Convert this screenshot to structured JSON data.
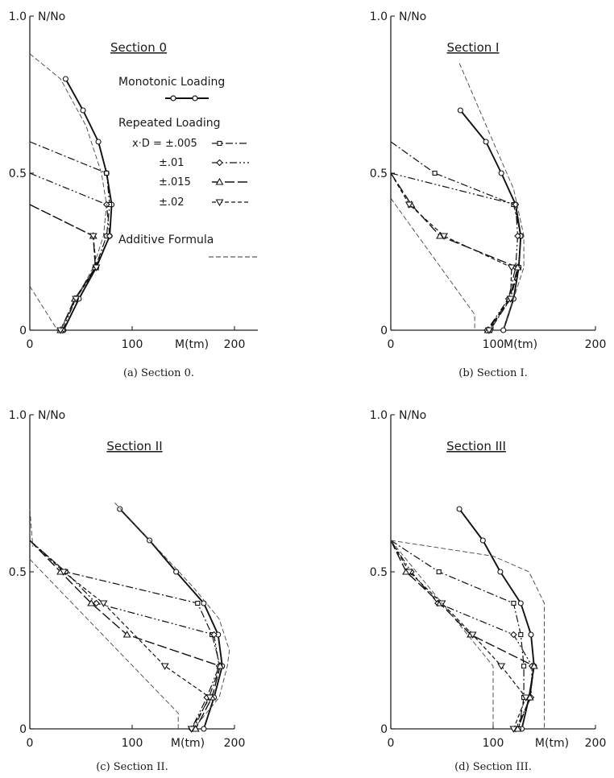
{
  "legend": {
    "monotonic_label": "Monotonic Loading",
    "repeated_label": "Repeated Loading",
    "additive_label": "Additive Formula",
    "entries": [
      "x·D = ±.005",
      "±.01",
      "±.015",
      "±.02"
    ]
  },
  "chart_data": [
    {
      "type": "line",
      "title": "Section 0",
      "caption": "(a)   Section 0.",
      "xlabel": "M(tm)",
      "ylabel": "N/No",
      "xlim": [
        0,
        200
      ],
      "ylim": [
        0,
        1.0
      ],
      "x_ticks": [
        "0",
        "100",
        "200"
      ],
      "y_ticks": [
        "0",
        "0.5",
        "1.0"
      ],
      "series": [
        {
          "name": "Monotonic Loading",
          "style": "mono",
          "points": [
            [
              30,
              0
            ],
            [
              33,
              0
            ],
            [
              48,
              0.1
            ],
            [
              65,
              0.2
            ],
            [
              78,
              0.3
            ],
            [
              80,
              0.4
            ],
            [
              75,
              0.5
            ],
            [
              67,
              0.6
            ],
            [
              52,
              0.7
            ],
            [
              35,
              0.8
            ]
          ]
        },
        {
          "name": "x·D = ±.005",
          "style": "s005",
          "points": [
            [
              0,
              0.6
            ],
            [
              75,
              0.5
            ],
            [
              78,
              0.4
            ],
            [
              75,
              0.3
            ],
            [
              64,
              0.2
            ],
            [
              45,
              0.1
            ],
            [
              30,
              0
            ]
          ]
        },
        {
          "name": "±.01",
          "style": "s01",
          "points": [
            [
              0,
              0.5
            ],
            [
              75,
              0.4
            ],
            [
              78,
              0.3
            ],
            [
              64,
              0.2
            ],
            [
              45,
              0.1
            ],
            [
              32,
              0
            ]
          ]
        },
        {
          "name": "±.015",
          "style": "s015",
          "points": [
            [
              0,
              0.4
            ],
            [
              62,
              0.3
            ],
            [
              64,
              0.2
            ],
            [
              44,
              0.1
            ],
            [
              30,
              0
            ]
          ]
        },
        {
          "name": "±.02",
          "style": "s02",
          "points": [
            [
              0,
              0.4
            ],
            [
              62,
              0.3
            ],
            [
              65,
              0.2
            ],
            [
              45,
              0.1
            ],
            [
              30,
              0
            ]
          ]
        },
        {
          "name": "Additive Formula",
          "style": "add",
          "points": [
            [
              0,
              0.88
            ],
            [
              30,
              0.8
            ],
            [
              55,
              0.65
            ],
            [
              70,
              0.5
            ],
            [
              75,
              0.4
            ],
            [
              72,
              0.3
            ],
            [
              62,
              0.2
            ],
            [
              45,
              0.1
            ],
            [
              30,
              0
            ]
          ]
        },
        {
          "name": "",
          "style": "add",
          "points": [
            [
              0,
              0.14
            ],
            [
              27,
              0
            ]
          ]
        }
      ]
    },
    {
      "type": "line",
      "title": "Section I",
      "caption": "(b)   Section I.",
      "xlabel": "M(tm)",
      "ylabel": "N/No",
      "xlim": [
        0,
        200
      ],
      "ylim": [
        0,
        1.0
      ],
      "x_ticks": [
        "0",
        "100",
        "200"
      ],
      "y_ticks": [
        "0",
        "0.5",
        "1.0"
      ],
      "series": [
        {
          "name": "Monotonic Loading",
          "style": "mono",
          "points": [
            [
              110,
              0
            ],
            [
              120,
              0.1
            ],
            [
              125,
              0.2
            ],
            [
              127,
              0.3
            ],
            [
              122,
              0.4
            ],
            [
              108,
              0.5
            ],
            [
              93,
              0.6
            ],
            [
              68,
              0.7
            ]
          ]
        },
        {
          "name": "x·D = ±.005",
          "style": "s005",
          "points": [
            [
              0,
              0.6
            ],
            [
              43,
              0.5
            ],
            [
              120,
              0.4
            ],
            [
              127,
              0.3
            ],
            [
              125,
              0.2
            ],
            [
              117,
              0.1
            ],
            [
              97,
              0
            ]
          ]
        },
        {
          "name": "±.01",
          "style": "s01",
          "points": [
            [
              0,
              0.5
            ],
            [
              122,
              0.4
            ],
            [
              124,
              0.3
            ],
            [
              122,
              0.2
            ],
            [
              115,
              0.1
            ],
            [
              94,
              0
            ]
          ]
        },
        {
          "name": "±.015",
          "style": "s015",
          "points": [
            [
              0,
              0.5
            ],
            [
              20,
              0.4
            ],
            [
              48,
              0.3
            ],
            [
              124,
              0.2
            ],
            [
              116,
              0.1
            ],
            [
              95,
              0
            ]
          ]
        },
        {
          "name": "±.02",
          "style": "s02",
          "points": [
            [
              0,
              0.5
            ],
            [
              18,
              0.4
            ],
            [
              52,
              0.3
            ],
            [
              118,
              0.2
            ],
            [
              117,
              0.1
            ],
            [
              96,
              0
            ]
          ]
        },
        {
          "name": "Additive Formula",
          "style": "add",
          "points": [
            [
              67,
              0.85
            ],
            [
              100,
              0.6
            ],
            [
              120,
              0.45
            ],
            [
              130,
              0.3
            ],
            [
              130,
              0.2
            ],
            [
              120,
              0.1
            ],
            [
              110,
              0
            ]
          ]
        },
        {
          "name": "",
          "style": "add",
          "points": [
            [
              0,
              0.42
            ],
            [
              82,
              0.05
            ],
            [
              82,
              0
            ]
          ]
        }
      ]
    },
    {
      "type": "line",
      "title": "Section II",
      "caption": "(c)   Section II.",
      "xlabel": "M(tm)",
      "ylabel": "N/No",
      "xlim": [
        0,
        200
      ],
      "ylim": [
        0,
        1.0
      ],
      "x_ticks": [
        "0",
        "100",
        "200"
      ],
      "y_ticks": [
        "0",
        "0.5",
        "1.0"
      ],
      "series": [
        {
          "name": "Monotonic Loading",
          "style": "mono",
          "points": [
            [
              170,
              0
            ],
            [
              180,
              0.1
            ],
            [
              188,
              0.2
            ],
            [
              184,
              0.3
            ],
            [
              170,
              0.4
            ],
            [
              143,
              0.5
            ],
            [
              117,
              0.6
            ],
            [
              88,
              0.7
            ]
          ]
        },
        {
          "name": "x·D = ±.005",
          "style": "s005",
          "points": [
            [
              0,
              0.6
            ],
            [
              35,
              0.5
            ],
            [
              164,
              0.4
            ],
            [
              178,
              0.3
            ],
            [
              186,
              0.2
            ],
            [
              175,
              0.1
            ],
            [
              160,
              0
            ]
          ]
        },
        {
          "name": "±.01",
          "style": "s01",
          "points": [
            [
              0,
              0.6
            ],
            [
              35,
              0.5
            ],
            [
              65,
              0.4
            ],
            [
              180,
              0.3
            ],
            [
              185,
              0.2
            ],
            [
              173,
              0.1
            ],
            [
              158,
              0
            ]
          ]
        },
        {
          "name": "±.015",
          "style": "s015",
          "points": [
            [
              0,
              0.6
            ],
            [
              30,
              0.5
            ],
            [
              60,
              0.4
            ],
            [
              95,
              0.3
            ],
            [
              186,
              0.2
            ],
            [
              178,
              0.1
            ],
            [
              162,
              0
            ]
          ]
        },
        {
          "name": "±.02",
          "style": "s02",
          "points": [
            [
              0,
              0.6
            ],
            [
              33,
              0.5
            ],
            [
              72,
              0.4
            ],
            [
              132,
              0.2
            ],
            [
              176,
              0.1
            ],
            [
              158,
              0
            ]
          ]
        },
        {
          "name": "Additive Formula",
          "style": "add",
          "points": [
            [
              83,
              0.72
            ],
            [
              160,
              0.45
            ],
            [
              185,
              0.35
            ],
            [
              195,
              0.25
            ],
            [
              193,
              0.2
            ],
            [
              185,
              0.1
            ],
            [
              160,
              0
            ]
          ]
        },
        {
          "name": "",
          "style": "add",
          "points": [
            [
              0,
              0.54
            ],
            [
              145,
              0.05
            ],
            [
              145,
              0
            ]
          ]
        },
        {
          "name": "",
          "style": "add",
          "points": [
            [
              0,
              0.7
            ],
            [
              3,
              0.58
            ]
          ]
        }
      ]
    },
    {
      "type": "line",
      "title": "Section III",
      "caption": "(d)   Section III.",
      "xlabel": "M(tm)",
      "ylabel": "N/No",
      "xlim": [
        0,
        200
      ],
      "ylim": [
        0,
        1.0
      ],
      "x_ticks": [
        "0",
        "100",
        "200"
      ],
      "y_ticks": [
        "0",
        "0.5",
        "1.0"
      ],
      "series": [
        {
          "name": "Monotonic Loading",
          "style": "mono",
          "points": [
            [
              128,
              0
            ],
            [
              135,
              0.1
            ],
            [
              140,
              0.2
            ],
            [
              137,
              0.3
            ],
            [
              127,
              0.4
            ],
            [
              107,
              0.5
            ],
            [
              90,
              0.6
            ],
            [
              67,
              0.7
            ]
          ]
        },
        {
          "name": "x·D = ±.005",
          "style": "s005",
          "points": [
            [
              0,
              0.6
            ],
            [
              47,
              0.5
            ],
            [
              120,
              0.4
            ],
            [
              127,
              0.3
            ],
            [
              130,
              0.2
            ],
            [
              130,
              0.1
            ],
            [
              125,
              0
            ]
          ]
        },
        {
          "name": "±.01",
          "style": "s01",
          "points": [
            [
              0,
              0.6
            ],
            [
              20,
              0.5
            ],
            [
              46,
              0.4
            ],
            [
              120,
              0.3
            ],
            [
              138,
              0.2
            ],
            [
              137,
              0.1
            ],
            [
              122,
              0
            ]
          ]
        },
        {
          "name": "±.015",
          "style": "s015",
          "points": [
            [
              0,
              0.6
            ],
            [
              15,
              0.5
            ],
            [
              48,
              0.4
            ],
            [
              78,
              0.3
            ],
            [
              140,
              0.2
            ],
            [
              136,
              0.1
            ],
            [
              124,
              0
            ]
          ]
        },
        {
          "name": "±.02",
          "style": "s02",
          "points": [
            [
              0,
              0.6
            ],
            [
              18,
              0.5
            ],
            [
              50,
              0.4
            ],
            [
              80,
              0.3
            ],
            [
              108,
              0.2
            ],
            [
              132,
              0.1
            ],
            [
              120,
              0
            ]
          ]
        },
        {
          "name": "Additive Formula",
          "style": "add",
          "points": [
            [
              0,
              0.6
            ],
            [
              100,
              0.55
            ],
            [
              135,
              0.5
            ],
            [
              150,
              0.4
            ],
            [
              150,
              0
            ]
          ]
        },
        {
          "name": "",
          "style": "add",
          "points": [
            [
              0,
              0.6
            ],
            [
              100,
              0.2
            ],
            [
              100,
              0
            ]
          ]
        }
      ]
    }
  ]
}
